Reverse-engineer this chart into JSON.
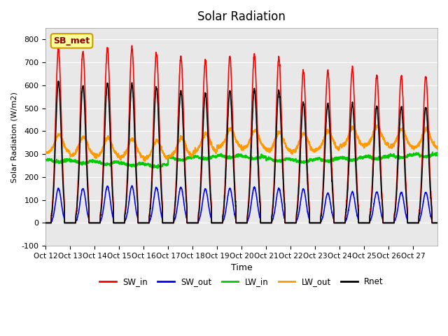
{
  "title": "Solar Radiation",
  "ylabel": "Solar Radiation (W/m2)",
  "xlabel": "Time",
  "station_label": "SB_met",
  "ylim": [
    -100,
    850
  ],
  "yticks": [
    -100,
    0,
    100,
    200,
    300,
    400,
    500,
    600,
    700,
    800
  ],
  "xtick_labels": [
    "Oct 12",
    "Oct 13",
    "Oct 14",
    "Oct 15",
    "Oct 16",
    "Oct 17",
    "Oct 18",
    "Oct 19",
    "Oct 20",
    "Oct 21",
    "Oct 22",
    "Oct 23",
    "Oct 24",
    "Oct 25",
    "Oct 26",
    "Oct 27"
  ],
  "n_days": 16,
  "SW_in_peak": [
    760,
    750,
    765,
    765,
    745,
    725,
    710,
    725,
    730,
    720,
    665,
    665,
    675,
    645,
    640,
    640
  ],
  "SW_out_peak": [
    150,
    150,
    160,
    160,
    155,
    155,
    148,
    150,
    155,
    150,
    148,
    130,
    135,
    135,
    133,
    133
  ],
  "LW_in_day": [
    275,
    270,
    265,
    260,
    255,
    285,
    290,
    295,
    290,
    280,
    275,
    280,
    285,
    290,
    295,
    300
  ],
  "LW_out_day": [
    335,
    325,
    320,
    315,
    310,
    320,
    340,
    360,
    355,
    345,
    340,
    350,
    365,
    370,
    360,
    358
  ],
  "Rnet_peak": [
    615,
    600,
    610,
    605,
    595,
    575,
    565,
    575,
    580,
    575,
    525,
    520,
    520,
    510,
    505,
    505
  ],
  "colors": {
    "SW_in": "#ff0000",
    "SW_out": "#0000ff",
    "LW_in": "#00cc00",
    "LW_out": "#ff9900",
    "Rnet": "#000000"
  },
  "linewidths": {
    "SW_in": 1.2,
    "SW_out": 1.2,
    "LW_in": 1.5,
    "LW_out": 1.5,
    "Rnet": 1.2
  },
  "plot_bg_color": "#e8e8e8"
}
